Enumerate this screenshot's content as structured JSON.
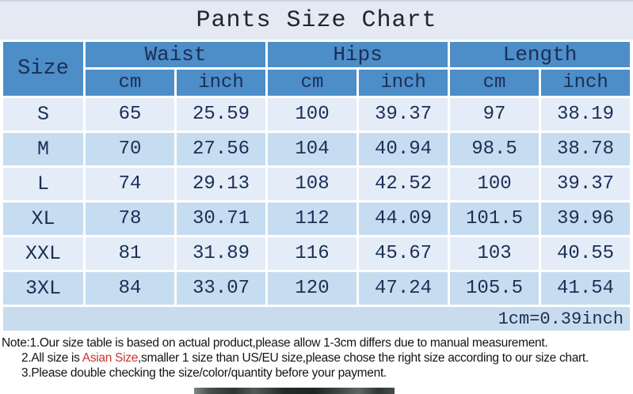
{
  "chart_data": {
    "type": "table",
    "title": "Pants Size Chart",
    "row_header": "Size",
    "column_groups": [
      {
        "label": "Waist",
        "sub": [
          "cm",
          "inch"
        ]
      },
      {
        "label": "Hips",
        "sub": [
          "cm",
          "inch"
        ]
      },
      {
        "label": "Length",
        "sub": [
          "cm",
          "inch"
        ]
      }
    ],
    "rows": [
      {
        "size": "S",
        "cells": [
          "65",
          "25.59",
          "100",
          "39.37",
          "97",
          "38.19"
        ]
      },
      {
        "size": "M",
        "cells": [
          "70",
          "27.56",
          "104",
          "40.94",
          "98.5",
          "38.78"
        ]
      },
      {
        "size": "L",
        "cells": [
          "74",
          "29.13",
          "108",
          "42.52",
          "100",
          "39.37"
        ]
      },
      {
        "size": "XL",
        "cells": [
          "78",
          "30.71",
          "112",
          "44.09",
          "101.5",
          "39.96"
        ]
      },
      {
        "size": "XXL",
        "cells": [
          "81",
          "31.89",
          "116",
          "45.67",
          "103",
          "40.55"
        ]
      },
      {
        "size": "3XL",
        "cells": [
          "84",
          "33.07",
          "120",
          "47.24",
          "105.5",
          "41.54"
        ]
      }
    ],
    "conversion": "1cm=0.39inch"
  },
  "notes": {
    "line1": "Note:1.Our size table is based on actual product,please allow 1-3cm differs due to manual measurement.",
    "line2_prefix": "2.All size is ",
    "line2_highlight": "Asian Size",
    "line2_suffix": ",smaller 1 size than US/EU size,please chose the right size according to our size chart.",
    "line3": "3.Please double checking the size/color/quantity before your payment."
  },
  "colors": {
    "title_band": "#e4e9f4",
    "header_blue": "#4d8dc8",
    "row_light": "#e4ecf8",
    "row_dark": "#c6dcf0",
    "conversion_band": "#c9dcee",
    "table_text": "#1b2f55",
    "highlight_red": "#cc3232"
  }
}
